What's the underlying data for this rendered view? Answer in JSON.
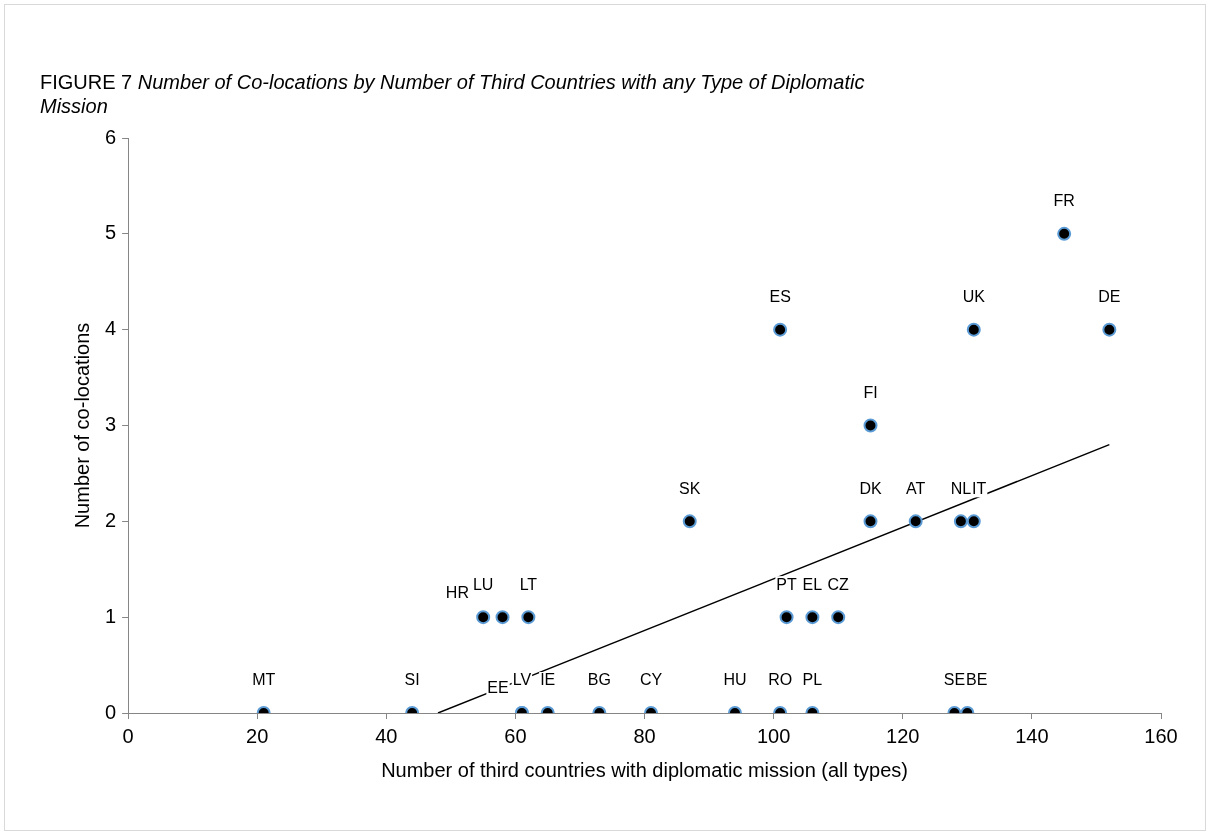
{
  "chart_data": {
    "type": "scatter",
    "title": "FIGURE 7 Number of Co-locations by Number of Third Countries with any Type of Diplomatic Mission",
    "xlabel": "Number of third countries with diplomatic mission (all types)",
    "ylabel": "Number of co-locations",
    "xlim": [
      0,
      160
    ],
    "xticks": [
      0,
      20,
      40,
      60,
      80,
      100,
      120,
      140,
      160
    ],
    "ylim": [
      0,
      6
    ],
    "yticks": [
      0,
      1,
      2,
      3,
      4,
      5,
      6
    ],
    "grid": false,
    "legend": false,
    "marker": "circle",
    "series": [
      {
        "color": "#000000",
        "x": [
          21,
          44,
          61,
          61,
          65,
          73,
          81,
          94,
          101,
          106,
          128,
          130,
          55,
          58,
          62,
          102,
          106,
          110,
          87,
          115,
          122,
          129,
          131,
          115,
          101,
          131,
          152,
          145
        ],
        "values": [
          0,
          0,
          0,
          0,
          0,
          0,
          0,
          0,
          0,
          0,
          0,
          0,
          1,
          1,
          1,
          1,
          1,
          1,
          2,
          2,
          2,
          2,
          2,
          3,
          4,
          4,
          4,
          5
        ]
      },
      {
        "type": "line",
        "color": "#000000",
        "marker": "none",
        "x": [
          48,
          152
        ],
        "values": [
          0,
          2.8
        ]
      }
    ],
    "annotations": [
      {
        "text": "MT",
        "x": 21,
        "y": 0
      },
      {
        "text": "SI",
        "x": 44,
        "y": 0
      },
      {
        "text": "LV",
        "x": 61,
        "y": 0
      },
      {
        "text": "EE",
        "x": 61,
        "y": 0
      },
      {
        "text": "IE",
        "x": 65,
        "y": 0
      },
      {
        "text": "BG",
        "x": 73,
        "y": 0
      },
      {
        "text": "CY",
        "x": 81,
        "y": 0
      },
      {
        "text": "HU",
        "x": 94,
        "y": 0
      },
      {
        "text": "RO",
        "x": 101,
        "y": 0
      },
      {
        "text": "PL",
        "x": 106,
        "y": 0
      },
      {
        "text": "SE",
        "x": 128,
        "y": 0
      },
      {
        "text": "BE",
        "x": 130,
        "y": 0
      },
      {
        "text": "LU",
        "x": 55,
        "y": 1
      },
      {
        "text": "HR",
        "x": 58,
        "y": 1
      },
      {
        "text": "LT",
        "x": 62,
        "y": 1
      },
      {
        "text": "PT",
        "x": 102,
        "y": 1
      },
      {
        "text": "EL",
        "x": 106,
        "y": 1
      },
      {
        "text": "CZ",
        "x": 110,
        "y": 1
      },
      {
        "text": "SK",
        "x": 87,
        "y": 2
      },
      {
        "text": "DK",
        "x": 115,
        "y": 2
      },
      {
        "text": "AT",
        "x": 122,
        "y": 2
      },
      {
        "text": "NL",
        "x": 129,
        "y": 2
      },
      {
        "text": "IT",
        "x": 131,
        "y": 2
      },
      {
        "text": "FI",
        "x": 115,
        "y": 3
      },
      {
        "text": "ES",
        "x": 101,
        "y": 4
      },
      {
        "text": "UK",
        "x": 131,
        "y": 4
      },
      {
        "text": "DE",
        "x": 152,
        "y": 4
      },
      {
        "text": "FR",
        "x": 145,
        "y": 5
      }
    ]
  }
}
